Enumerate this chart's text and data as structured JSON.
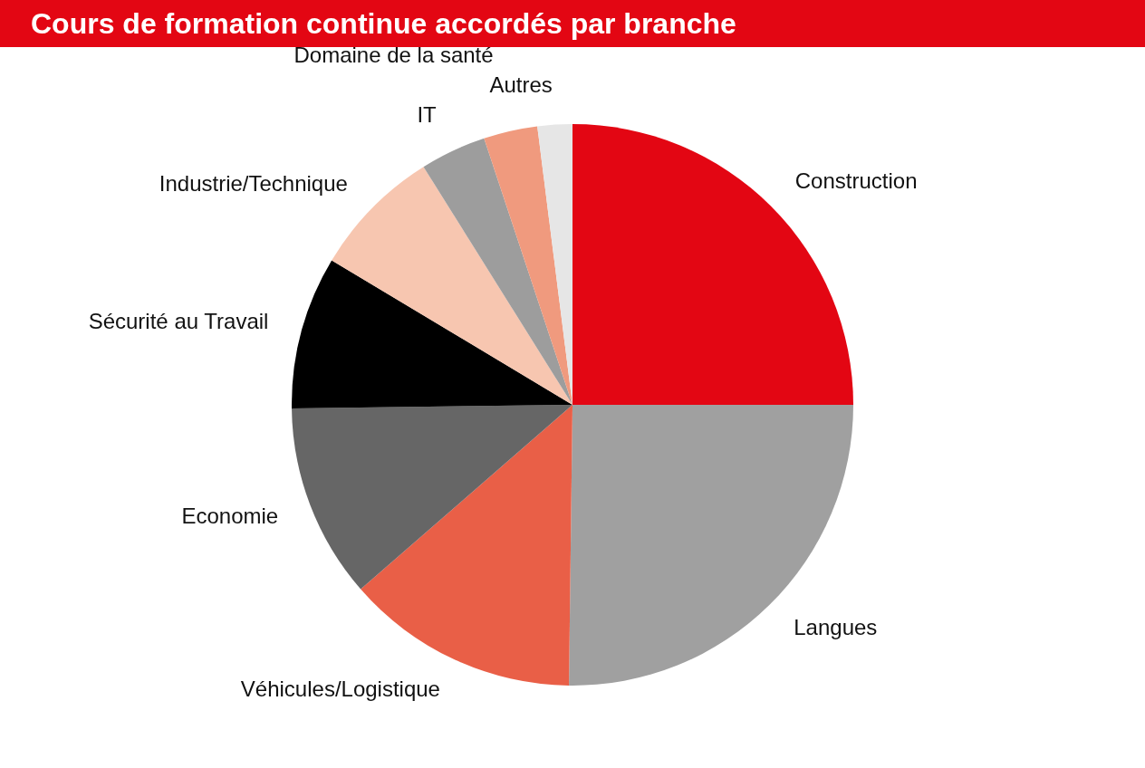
{
  "chart_data": {
    "type": "pie",
    "title": "Cours de formation continue accordés par branche",
    "categories": [
      "Construction",
      "Langues",
      "Véhicules/Logistique",
      "Economie",
      "Sécurité au Travail",
      "Industrie/Technique",
      "IT",
      "Domaine de la santé",
      "Autres"
    ],
    "values": [
      25,
      25.2,
      13.4,
      11.2,
      8.8,
      7.5,
      3.8,
      3.1,
      2.0
    ],
    "colors": [
      "#e30613",
      "#a0a0a0",
      "#e95f47",
      "#666666",
      "#000000",
      "#f7c6b0",
      "#9d9d9d",
      "#f09a7e",
      "#e6e6e6"
    ]
  }
}
